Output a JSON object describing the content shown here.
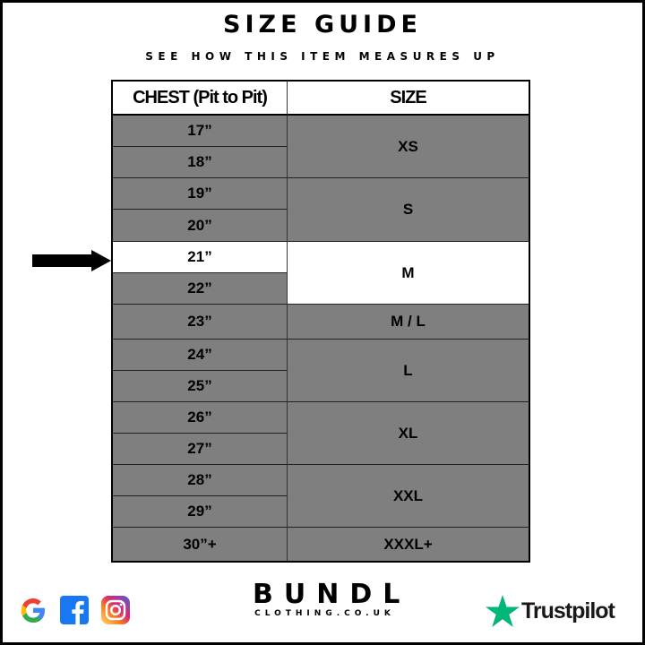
{
  "title": "SIZE GUIDE",
  "subtitle": "SEE HOW THIS ITEM MEASURES UP",
  "table": {
    "headers": [
      "CHEST (Pit to Pit)",
      "SIZE"
    ],
    "chest": [
      "17”",
      "18”",
      "19”",
      "20”",
      "21”",
      "22”",
      "23”",
      "24”",
      "25”",
      "26”",
      "27”",
      "28”",
      "29”",
      "30”+"
    ],
    "sizes": [
      {
        "label": "XS",
        "rows": 2
      },
      {
        "label": "S",
        "rows": 2
      },
      {
        "label": "M",
        "rows": 2
      },
      {
        "label": "M / L",
        "rows": 1
      },
      {
        "label": "L",
        "rows": 2
      },
      {
        "label": "XL",
        "rows": 2
      },
      {
        "label": "XXL",
        "rows": 2
      },
      {
        "label": "XXXL+",
        "rows": 1
      }
    ],
    "highlighted_chest": "21”",
    "highlighted_size": "M"
  },
  "brand": {
    "name": "BUNDL",
    "domain": "CLOTHING.CO.UK"
  },
  "social_icons": [
    "google-icon",
    "facebook-icon",
    "instagram-icon"
  ],
  "trustpilot": {
    "label": "Trustpilot",
    "color": "#00b67a"
  },
  "colors": {
    "row_gray": "#7f7f7f",
    "highlight": "#ffffff"
  }
}
